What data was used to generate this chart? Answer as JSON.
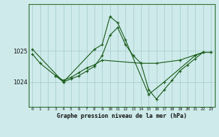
{
  "title": "Graphe pression niveau de la mer (hPa)",
  "background_color": "#ceeaea",
  "grid_color": "#aacece",
  "line_color": "#1a5c1a",
  "yticks": [
    1024,
    1025
  ],
  "ylim": [
    1023.2,
    1026.5
  ],
  "xlim": [
    -0.5,
    23.5
  ],
  "series1_x": [
    0,
    1,
    3,
    4,
    5,
    6,
    7,
    8,
    9,
    14,
    16,
    19,
    22,
    23
  ],
  "series1_y": [
    1024.9,
    1024.6,
    1024.2,
    1024.05,
    1024.15,
    1024.3,
    1024.45,
    1024.55,
    1024.7,
    1024.6,
    1024.6,
    1024.7,
    1024.95,
    1024.95
  ],
  "series2_x": [
    3,
    4,
    5,
    6,
    7,
    8,
    9,
    10,
    11,
    12,
    13,
    14,
    15,
    16,
    17,
    18,
    19,
    20,
    21,
    22,
    23
  ],
  "series2_y": [
    1024.2,
    1024.0,
    1024.1,
    1024.2,
    1024.35,
    1024.5,
    1024.85,
    1025.5,
    1025.75,
    1025.2,
    1024.85,
    1024.6,
    1023.75,
    1023.45,
    1023.75,
    1024.05,
    1024.35,
    1024.55,
    1024.75,
    1024.95,
    1024.95
  ],
  "series3_x": [
    0,
    4,
    8,
    9,
    10,
    11,
    12,
    15,
    17,
    21,
    22
  ],
  "series3_y": [
    1025.05,
    1024.0,
    1025.05,
    1025.2,
    1026.1,
    1025.9,
    1025.35,
    1023.6,
    1024.0,
    1024.85,
    1024.95
  ]
}
